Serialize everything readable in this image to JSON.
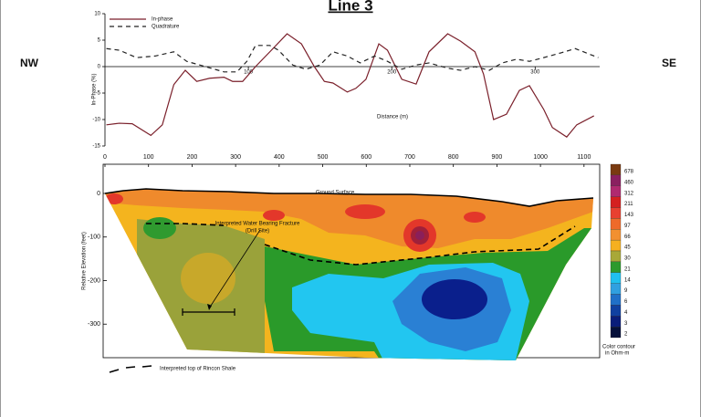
{
  "title": "Line 3",
  "left_label": "NW",
  "right_label": "SE",
  "chart_data": [
    {
      "type": "line",
      "xlabel": "Distance (m)",
      "ylabel": "In-Phase (%)",
      "xlim": [
        0,
        345
      ],
      "ylim": [
        -15,
        10
      ],
      "xticks": [
        100,
        200,
        300
      ],
      "yticks": [
        -15,
        -10,
        -5,
        0,
        5,
        10
      ],
      "series": [
        {
          "name": "In-phase",
          "color": "#7a1f2a",
          "dash": false,
          "x": [
            1,
            10,
            19,
            32,
            40,
            48,
            56,
            64,
            73,
            83,
            89,
            96,
            105,
            115,
            127,
            137,
            146,
            153,
            159,
            169,
            175,
            182,
            191,
            197,
            207,
            217,
            226,
            239,
            248,
            258,
            264,
            271,
            280,
            289,
            296,
            306,
            312,
            322,
            329,
            341
          ],
          "values": [
            -11,
            -10.7,
            -10.8,
            -13,
            -11,
            -3.4,
            -0.7,
            -2.8,
            -2.2,
            -2,
            -2.8,
            -2.8,
            0,
            2.8,
            6.2,
            4.3,
            0,
            -2.8,
            -3.1,
            -4.8,
            -4.1,
            -2.4,
            4.3,
            3.1,
            -2.4,
            -3.3,
            2.8,
            6.2,
            4.8,
            2.8,
            -1.4,
            -10,
            -9,
            -4.5,
            -3.6,
            -8.1,
            -11.5,
            -13.3,
            -11,
            -9.3
          ]
        },
        {
          "name": "Quadrature",
          "color": "#222222",
          "dash": true,
          "x": [
            1,
            10,
            22,
            35,
            48,
            57,
            70,
            83,
            92,
            99,
            105,
            115,
            121,
            131,
            140,
            150,
            159,
            169,
            178,
            188,
            197,
            207,
            217,
            226,
            239,
            248,
            258,
            268,
            277,
            287,
            296,
            306,
            318,
            328,
            344
          ],
          "values": [
            3.4,
            3.1,
            1.7,
            2,
            2.8,
            1,
            0,
            -1,
            -1,
            1,
            4,
            4,
            3.1,
            0.3,
            -0.5,
            0.3,
            2.8,
            2,
            0.7,
            2,
            1,
            -0.5,
            0.3,
            0.7,
            -0.3,
            -0.7,
            0,
            -0.7,
            0.7,
            1.4,
            1,
            1.7,
            2.6,
            3.4,
            1.7
          ]
        }
      ]
    },
    {
      "type": "contour",
      "ylabel": "Relative Elevation (feet)",
      "xlim": [
        0,
        1136
      ],
      "ylim": [
        -377,
        67
      ],
      "xticks": [
        0,
        100,
        200,
        300,
        400,
        500,
        600,
        700,
        800,
        900,
        1000,
        1100
      ],
      "yticks": [
        -300,
        -200,
        -100,
        0
      ],
      "annotations": [
        "Ground Surface",
        "Interpreted Water Bearing Fracture",
        "(Drill Site)"
      ],
      "legend_line": "Interpreted top of Rincon Shale",
      "colorbar": {
        "values": [
          678,
          460,
          312,
          211,
          143,
          97,
          66,
          45,
          30,
          21,
          14,
          9,
          6,
          4,
          3,
          2
        ],
        "colors": [
          "#7a3a10",
          "#8a2060",
          "#b02a70",
          "#d42020",
          "#e84030",
          "#ee6a2a",
          "#f29030",
          "#f5b020",
          "#a8a838",
          "#2c9a2c",
          "#20c0ee",
          "#30a0e0",
          "#2070c8",
          "#1040a0",
          "#0a1d7a",
          "#05103a"
        ],
        "caption": [
          "Color contour",
          "in Ohm-m"
        ]
      }
    }
  ]
}
